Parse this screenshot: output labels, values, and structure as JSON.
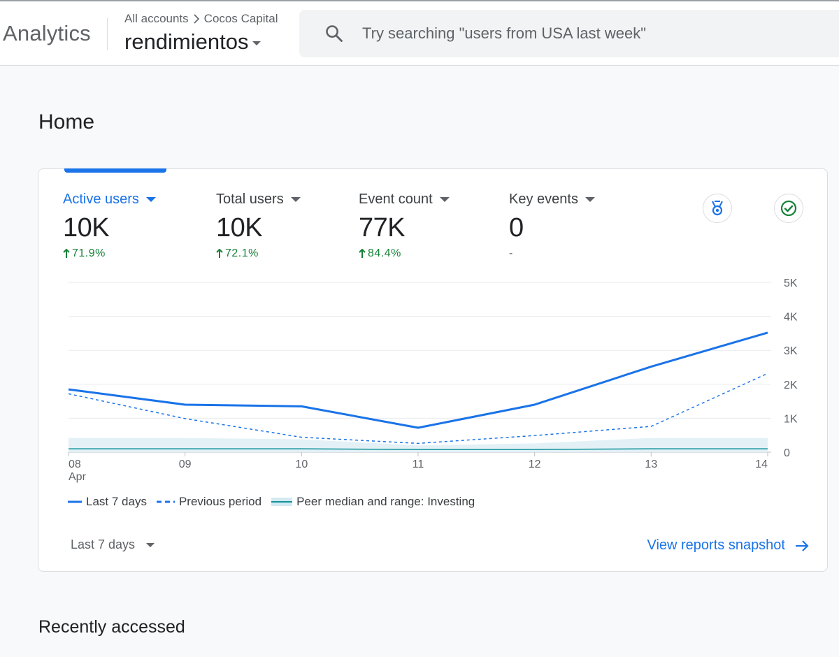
{
  "header": {
    "app_name": "Analytics",
    "breadcrumb": [
      "All accounts",
      "Cocos Capital"
    ],
    "property_name": "rendimientos",
    "search_placeholder": "Try searching \"users from USA last week\""
  },
  "page": {
    "title": "Home",
    "recently_accessed_title": "Recently accessed"
  },
  "metrics": [
    {
      "label": "Active users",
      "value": "10K",
      "change": "71.9%",
      "direction": "up"
    },
    {
      "label": "Total users",
      "value": "10K",
      "change": "72.1%",
      "direction": "up"
    },
    {
      "label": "Event count",
      "value": "77K",
      "change": "84.4%",
      "direction": "up"
    },
    {
      "label": "Key events",
      "value": "0",
      "change": "-",
      "direction": "none"
    }
  ],
  "icons": {
    "insights": "medal-icon",
    "status": "check-circle-icon"
  },
  "colors": {
    "accent": "#1a73e8",
    "positive": "#188038",
    "peer": "#12939a",
    "peer_range": "#e3f1f7"
  },
  "chart_data": {
    "type": "line",
    "x": [
      "08",
      "09",
      "10",
      "11",
      "12",
      "13",
      "14"
    ],
    "x_sublabel": "Apr",
    "ylim": [
      0,
      5000
    ],
    "y_ticks": [
      "0",
      "1K",
      "2K",
      "3K",
      "4K",
      "5K"
    ],
    "y_tick_values": [
      0,
      1000,
      2000,
      3000,
      4000,
      5000
    ],
    "series": [
      {
        "name": "Last 7 days",
        "style": "solid",
        "values": [
          1850,
          1400,
          1350,
          720,
          1400,
          2520,
          3520
        ]
      },
      {
        "name": "Previous period",
        "style": "dashed",
        "values": [
          1720,
          990,
          440,
          260,
          490,
          760,
          2320
        ]
      },
      {
        "name": "Peer median and range: Investing",
        "style": "band",
        "values": [
          100,
          100,
          100,
          80,
          80,
          100,
          100
        ],
        "range_low": [
          0,
          0,
          0,
          0,
          0,
          0,
          0
        ],
        "range_high": [
          420,
          420,
          380,
          200,
          260,
          420,
          420
        ]
      }
    ]
  },
  "footer": {
    "date_range": "Last 7 days",
    "view_link": "View reports snapshot"
  }
}
